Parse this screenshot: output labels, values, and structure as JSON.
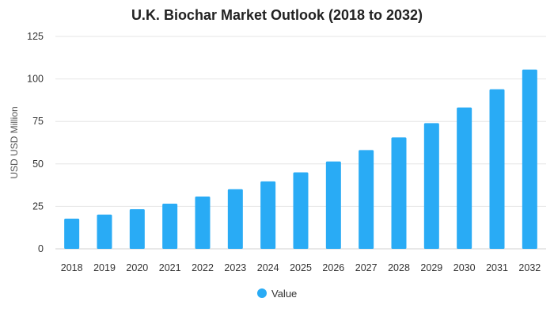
{
  "chart_data": {
    "type": "bar",
    "title": "U.K. Biochar Market Outlook (2018 to 2032)",
    "xlabel": "",
    "ylabel": "USD USD Million",
    "ylim": [
      0,
      125
    ],
    "yticks": [
      0,
      25,
      50,
      75,
      100,
      125
    ],
    "grid": true,
    "legend_position": "bottom-center",
    "categories": [
      "2018",
      "2019",
      "2020",
      "2021",
      "2022",
      "2023",
      "2024",
      "2025",
      "2026",
      "2027",
      "2028",
      "2029",
      "2030",
      "2031",
      "2032"
    ],
    "series": [
      {
        "name": "Value",
        "color": "#29abf5",
        "values": [
          17.8,
          20.2,
          23.3,
          26.6,
          30.8,
          35.1,
          39.7,
          45.0,
          51.4,
          58.1,
          65.6,
          74.0,
          83.2,
          93.9,
          105.5
        ]
      }
    ]
  }
}
